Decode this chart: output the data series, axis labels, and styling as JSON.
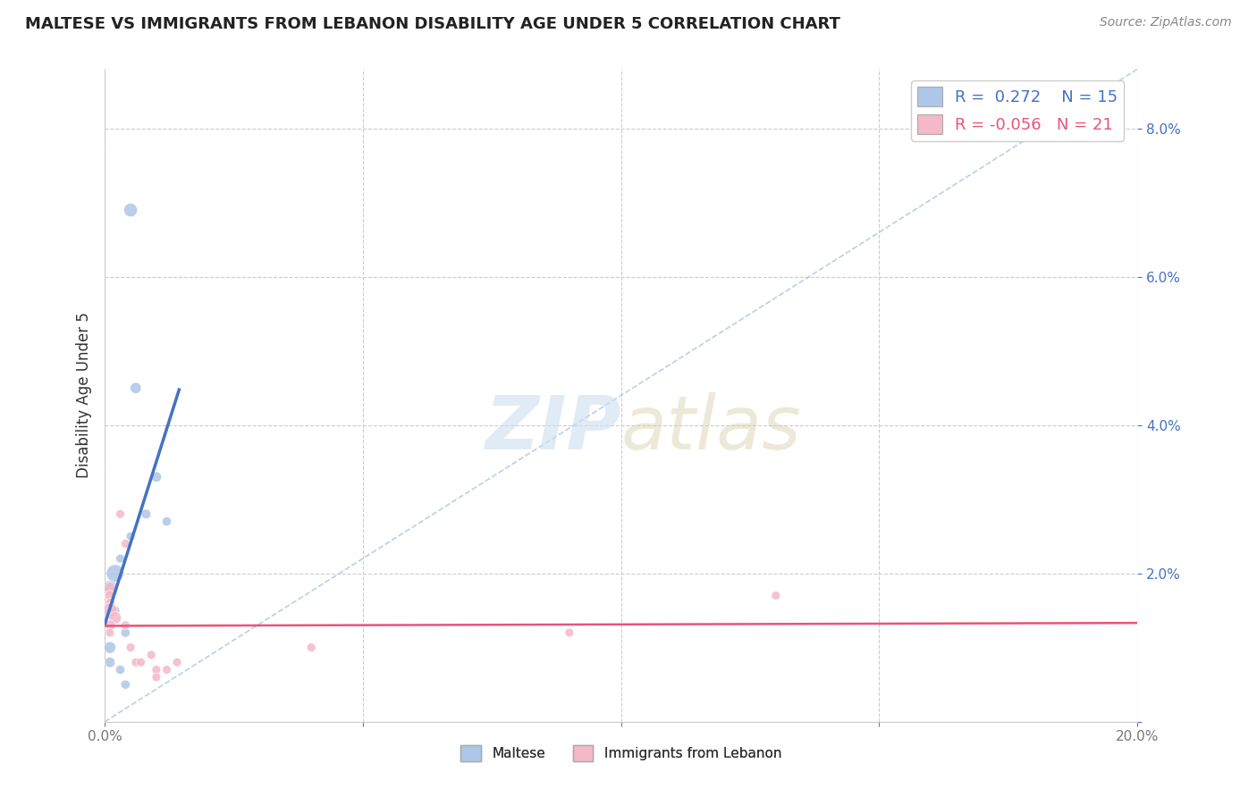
{
  "title": "MALTESE VS IMMIGRANTS FROM LEBANON DISABILITY AGE UNDER 5 CORRELATION CHART",
  "source": "Source: ZipAtlas.com",
  "ylabel": "Disability Age Under 5",
  "xlim": [
    0.0,
    0.2
  ],
  "ylim": [
    0.0,
    0.088
  ],
  "xticks": [
    0.0,
    0.05,
    0.1,
    0.15,
    0.2
  ],
  "yticks": [
    0.0,
    0.02,
    0.04,
    0.06,
    0.08
  ],
  "legend_maltese_R": "0.272",
  "legend_maltese_N": "15",
  "legend_lebanon_R": "-0.056",
  "legend_lebanon_N": "21",
  "maltese_color": "#aec6e8",
  "lebanon_color": "#f4b8c8",
  "trendline_maltese_color": "#4472c4",
  "trendline_lebanon_color": "#e8547a",
  "diag_color": "#a8c4e0",
  "maltese_points": [
    [
      0.005,
      0.069
    ],
    [
      0.006,
      0.045
    ],
    [
      0.01,
      0.033
    ],
    [
      0.008,
      0.028
    ],
    [
      0.012,
      0.027
    ],
    [
      0.005,
      0.025
    ],
    [
      0.003,
      0.022
    ],
    [
      0.002,
      0.02
    ],
    [
      0.001,
      0.018
    ],
    [
      0.002,
      0.015
    ],
    [
      0.004,
      0.012
    ],
    [
      0.001,
      0.01
    ],
    [
      0.001,
      0.008
    ],
    [
      0.003,
      0.007
    ],
    [
      0.004,
      0.005
    ]
  ],
  "lebanon_points": [
    [
      0.001,
      0.018
    ],
    [
      0.001,
      0.017
    ],
    [
      0.001,
      0.016
    ],
    [
      0.001,
      0.015
    ],
    [
      0.002,
      0.014
    ],
    [
      0.001,
      0.013
    ],
    [
      0.001,
      0.012
    ],
    [
      0.003,
      0.028
    ],
    [
      0.004,
      0.024
    ],
    [
      0.005,
      0.01
    ],
    [
      0.006,
      0.008
    ],
    [
      0.004,
      0.013
    ],
    [
      0.007,
      0.008
    ],
    [
      0.009,
      0.009
    ],
    [
      0.01,
      0.007
    ],
    [
      0.01,
      0.006
    ],
    [
      0.012,
      0.007
    ],
    [
      0.014,
      0.008
    ],
    [
      0.04,
      0.01
    ],
    [
      0.13,
      0.017
    ],
    [
      0.09,
      0.012
    ]
  ],
  "maltese_sizes": [
    120,
    80,
    70,
    60,
    55,
    50,
    50,
    200,
    150,
    55,
    55,
    90,
    70,
    55,
    55
  ],
  "lebanon_sizes": [
    90,
    70,
    60,
    140,
    100,
    70,
    50,
    50,
    50,
    50,
    50,
    50,
    50,
    50,
    50,
    50,
    50,
    50,
    50,
    50,
    50
  ]
}
